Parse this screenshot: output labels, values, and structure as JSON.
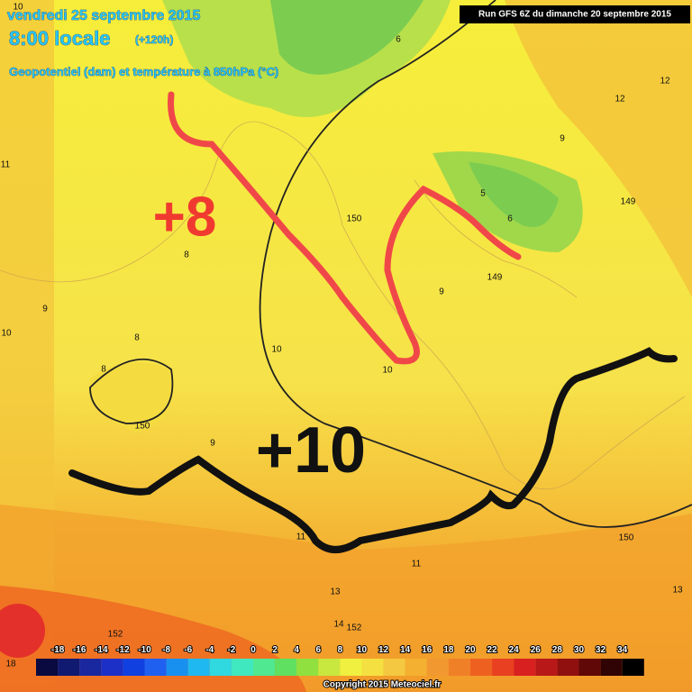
{
  "header": {
    "date": "vendredi 25 septembre 2015",
    "time": "8:00 locale",
    "lead": "(+120h)",
    "subtitle": "Geopotentiel (dam) et température à 850hPa (°C)",
    "run": "Run GFS 6Z du dimanche 20 septembre 2015"
  },
  "annotations": [
    "+8",
    "+10"
  ],
  "map_labels": [
    "10",
    "12",
    "11",
    "10",
    "9",
    "8",
    "8",
    "150",
    "9",
    "10",
    "10",
    "9",
    "149",
    "150",
    "13",
    "13",
    "11",
    "152",
    "152",
    "14",
    "18",
    "11",
    "150",
    "149",
    "8",
    "12",
    "9",
    "6",
    "5",
    "6"
  ],
  "colorbar": {
    "labels": [
      "-18",
      "-16",
      "-14",
      "-12",
      "-10",
      "-8",
      "-6",
      "-4",
      "-2",
      "0",
      "2",
      "4",
      "6",
      "8",
      "10",
      "12",
      "14",
      "16",
      "18",
      "20",
      "22",
      "24",
      "26",
      "28",
      "30",
      "32",
      "34"
    ]
  },
  "footer": {
    "copyright": "Copyright 2015 Meteociel.fr"
  }
}
